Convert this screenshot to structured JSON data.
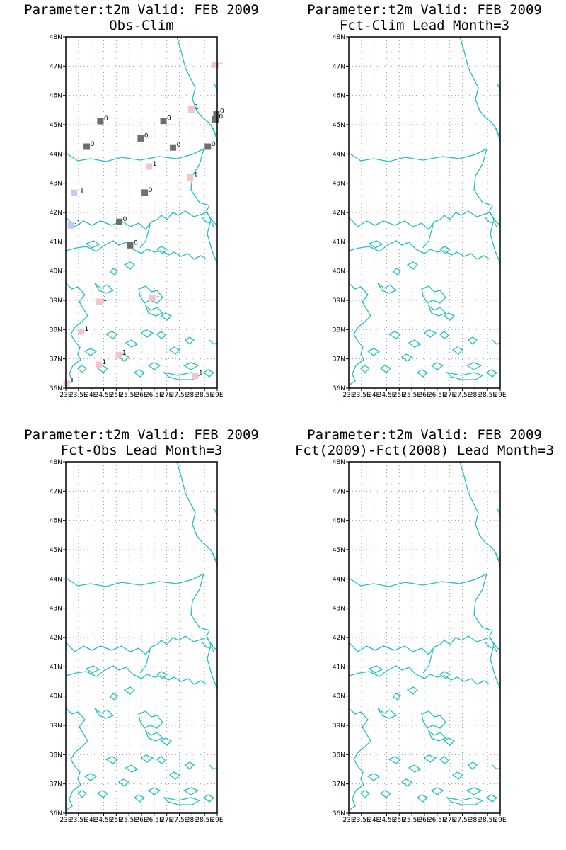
{
  "panels": [
    {
      "title": "Parameter:t2m Valid: FEB 2009",
      "subtitle": "Obs-Clim"
    },
    {
      "title": "Parameter:t2m Valid: FEB 2009",
      "subtitle": "Fct-Clim Lead Month=3"
    },
    {
      "title": "Parameter:t2m Valid: FEB 2009",
      "subtitle": "Fct-Obs Lead Month=3"
    },
    {
      "title": "Parameter:t2m Valid: FEB 2009",
      "subtitle": "Fct(2009)-Fct(2008) Lead Month=3"
    }
  ],
  "lat_labels": [
    "48N",
    "47N",
    "46N",
    "45N",
    "44N",
    "43N",
    "42N",
    "41N",
    "40N",
    "39N",
    "38N",
    "37N",
    "36N"
  ],
  "lon_labels": [
    "23E",
    "23.5E",
    "24E",
    "24.5E",
    "25E",
    "25.5E",
    "26E",
    "26.5E",
    "27E",
    "27.5E",
    "28E",
    "28.5E",
    "29E"
  ],
  "colors": {
    "coast": "#20c0c0",
    "grid": "#a0a0a0",
    "warm": "#f4c4c8",
    "neutral": "#6e6e6e",
    "cold": "#c8c8f4"
  },
  "stations": [
    {
      "lon": 28.93,
      "lat": 47.05,
      "value": "1",
      "color": "#f4c4c8"
    },
    {
      "lon": 27.97,
      "lat": 45.52,
      "value": "1",
      "color": "#f4c4c8"
    },
    {
      "lon": 28.97,
      "lat": 45.37,
      "value": "0",
      "color": "#6e6e6e"
    },
    {
      "lon": 28.93,
      "lat": 45.18,
      "value": "0",
      "color": "#6e6e6e"
    },
    {
      "lon": 24.37,
      "lat": 45.12,
      "value": "0",
      "color": "#6e6e6e"
    },
    {
      "lon": 26.87,
      "lat": 45.13,
      "value": "0",
      "color": "#6e6e6e"
    },
    {
      "lon": 25.97,
      "lat": 44.53,
      "value": "0",
      "color": "#6e6e6e"
    },
    {
      "lon": 23.83,
      "lat": 44.25,
      "value": "0",
      "color": "#6e6e6e"
    },
    {
      "lon": 27.25,
      "lat": 44.22,
      "value": "0",
      "color": "#6e6e6e"
    },
    {
      "lon": 28.63,
      "lat": 44.25,
      "value": "0",
      "color": "#6e6e6e"
    },
    {
      "lon": 26.3,
      "lat": 43.57,
      "value": "1",
      "color": "#f4c4c8"
    },
    {
      "lon": 27.93,
      "lat": 43.2,
      "value": "1",
      "color": "#f4c4c8"
    },
    {
      "lon": 23.33,
      "lat": 42.67,
      "value": "-1",
      "color": "#c8c8f4"
    },
    {
      "lon": 26.13,
      "lat": 42.68,
      "value": "0",
      "color": "#6e6e6e"
    },
    {
      "lon": 25.12,
      "lat": 41.68,
      "value": "0",
      "color": "#6e6e6e"
    },
    {
      "lon": 23.2,
      "lat": 41.55,
      "value": "-1",
      "color": "#c8c8f4"
    },
    {
      "lon": 25.55,
      "lat": 40.88,
      "value": "0",
      "color": "#6e6e6e"
    },
    {
      "lon": 24.33,
      "lat": 38.95,
      "value": "1",
      "color": "#f4c4c8"
    },
    {
      "lon": 26.43,
      "lat": 39.08,
      "value": "1",
      "color": "#f4c4c8"
    },
    {
      "lon": 23.6,
      "lat": 37.93,
      "value": "1",
      "color": "#f4c4c8"
    },
    {
      "lon": 25.1,
      "lat": 37.13,
      "value": "1",
      "color": "#f4c4c8"
    },
    {
      "lon": 24.3,
      "lat": 36.8,
      "value": "1",
      "color": "#f4c4c8"
    },
    {
      "lon": 28.13,
      "lat": 36.42,
      "value": "1",
      "color": "#f4c4c8"
    },
    {
      "lon": 23.03,
      "lat": 36.17,
      "value": "1",
      "color": "#f4c4c8"
    }
  ]
}
